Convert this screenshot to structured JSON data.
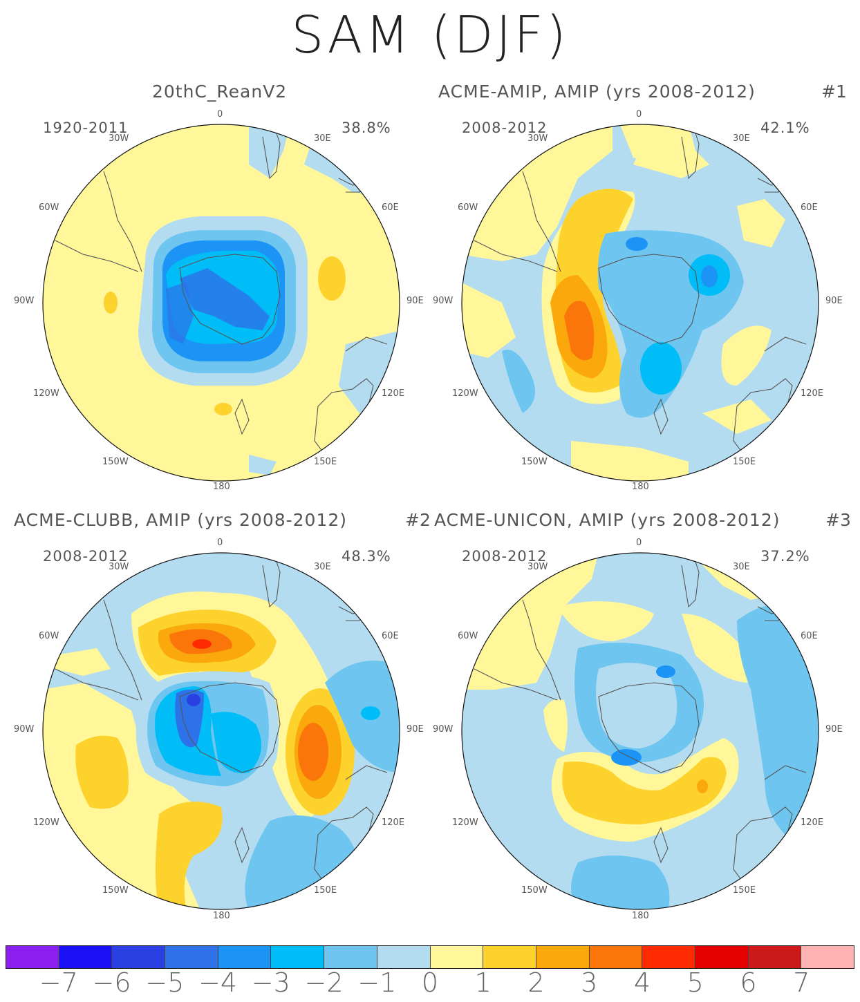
{
  "title": "SAM (DJF)",
  "panels": [
    {
      "title": "20thC_ReanV2",
      "number": "",
      "period": "1920-2011",
      "variance": "38.8%"
    },
    {
      "title": "ACME-AMIP, AMIP (yrs 2008-2012)",
      "number": "#1",
      "period": "2008-2012",
      "variance": "42.1%"
    },
    {
      "title": "ACME-CLUBB, AMIP (yrs 2008-2012)",
      "number": "#2",
      "period": "2008-2012",
      "variance": "48.3%"
    },
    {
      "title": "ACME-UNICON, AMIP (yrs 2008-2012)",
      "number": "#3",
      "period": "2008-2012",
      "variance": "37.2%"
    }
  ],
  "lon_labels": {
    "top": "0",
    "bottom": "180",
    "l30": "30W",
    "r30": "30E",
    "l60": "60W",
    "r60": "60E",
    "l90": "90W",
    "r90": "90E",
    "l120": "120W",
    "r120": "120E",
    "l150": "150W",
    "r150": "150E"
  },
  "colorbar": {
    "colors": [
      "#8a1fef",
      "#1a10f5",
      "#2a40e3",
      "#2d72e8",
      "#1b94f5",
      "#00bdf7",
      "#6ec6f0",
      "#b4dcf0",
      "#fff79a",
      "#fdd22c",
      "#fba80c",
      "#fb760a",
      "#ff2a00",
      "#e50000",
      "#cc1a1a",
      "#ffb3b3"
    ],
    "labels": [
      "-7",
      "-6",
      "-5",
      "-4",
      "-3",
      "-2",
      "-1",
      "0",
      "1",
      "2",
      "3",
      "4",
      "5",
      "6",
      "7"
    ]
  }
}
